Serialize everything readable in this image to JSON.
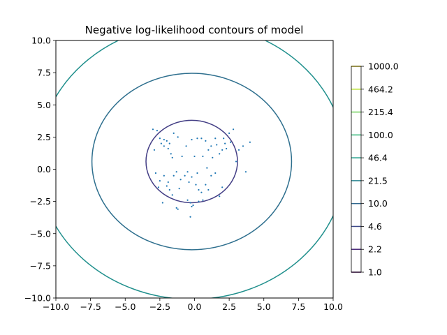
{
  "chart_data": {
    "type": "contour",
    "title": "Negative log-likelihood contours of model",
    "xlim": [
      -10,
      10
    ],
    "ylim": [
      -10,
      10
    ],
    "xticks": [
      -10,
      -7.5,
      -5,
      -2.5,
      0,
      2.5,
      5,
      7.5,
      10
    ],
    "xtick_labels": [
      "−10.0",
      "−7.5",
      "−5.0",
      "−2.5",
      "0.0",
      "2.5",
      "5.0",
      "7.5",
      "10.0"
    ],
    "yticks": [
      -10,
      -7.5,
      -5,
      -2.5,
      0,
      2.5,
      5,
      7.5,
      10
    ],
    "ytick_labels": [
      "−10.0",
      "−7.5",
      "−5.0",
      "−2.5",
      "0.0",
      "2.5",
      "5.0",
      "7.5",
      "10.0"
    ],
    "grid": false,
    "contour_center": [
      -0.2,
      0.6
    ],
    "contours": [
      {
        "level": 4.6,
        "rx": 3.3,
        "ry": 3.2,
        "color": "#433e85"
      },
      {
        "level": 10.0,
        "rx": 7.2,
        "ry": 6.85,
        "color": "#2e6f8e"
      },
      {
        "level": 21.5,
        "rx": 11.1,
        "ry": 10.7,
        "color": "#21908d"
      }
    ],
    "colorbar": {
      "levels": [
        1.0,
        2.2,
        4.6,
        10.0,
        21.5,
        46.4,
        100.0,
        215.4,
        464.2,
        1000.0
      ],
      "labels": [
        "1.0",
        "2.2",
        "4.6",
        "10.0",
        "21.5",
        "46.4",
        "100.0",
        "215.4",
        "464.2",
        "1000.0"
      ],
      "colors": [
        "#440154",
        "#482878",
        "#3e4989",
        "#31688e",
        "#26828e",
        "#1f9e89",
        "#35b779",
        "#6ece58",
        "#b5de2b",
        "#fde725"
      ]
    },
    "scatter_color": "#1f77b4",
    "points": [
      [
        -3.0,
        3.1
      ],
      [
        -2.7,
        3.0
      ],
      [
        -2.5,
        2.4
      ],
      [
        -2.2,
        2.3
      ],
      [
        -2.0,
        2.2
      ],
      [
        -1.8,
        2.0
      ],
      [
        -1.5,
        2.8
      ],
      [
        -1.2,
        2.5
      ],
      [
        -0.6,
        1.8
      ],
      [
        -0.2,
        2.3
      ],
      [
        0.2,
        2.4
      ],
      [
        0.5,
        2.4
      ],
      [
        0.8,
        2.2
      ],
      [
        1.0,
        1.5
      ],
      [
        1.2,
        1.8
      ],
      [
        1.5,
        2.4
      ],
      [
        1.8,
        1.2
      ],
      [
        2.0,
        1.5
      ],
      [
        2.2,
        2.0
      ],
      [
        2.5,
        2.8
      ],
      [
        2.8,
        3.1
      ],
      [
        3.2,
        1.5
      ],
      [
        3.5,
        1.8
      ],
      [
        4.0,
        2.1
      ],
      [
        3.0,
        0.6
      ],
      [
        3.7,
        -0.2
      ],
      [
        -2.9,
        1.5
      ],
      [
        -2.4,
        2.0
      ],
      [
        -2.2,
        1.8
      ],
      [
        -1.9,
        1.6
      ],
      [
        -1.7,
        1.2
      ],
      [
        -1.6,
        0.9
      ],
      [
        -0.9,
        1.0
      ],
      [
        0.0,
        1.0
      ],
      [
        0.6,
        1.0
      ],
      [
        1.3,
        0.9
      ],
      [
        1.6,
        1.9
      ],
      [
        2.3,
        1.6
      ],
      [
        2.6,
        2.1
      ],
      [
        2.1,
        2.4
      ],
      [
        -2.8,
        -0.3
      ],
      [
        -2.5,
        -0.9
      ],
      [
        -2.2,
        -0.5
      ],
      [
        -2.0,
        -1.3
      ],
      [
        -1.8,
        -1.6
      ],
      [
        -1.5,
        -0.5
      ],
      [
        -1.3,
        -0.2
      ],
      [
        -1.0,
        -0.8
      ],
      [
        -0.7,
        -0.5
      ],
      [
        -0.4,
        -1.0
      ],
      [
        -0.2,
        -0.6
      ],
      [
        0.1,
        -1.2
      ],
      [
        0.3,
        -1.6
      ],
      [
        0.5,
        -1.8
      ],
      [
        0.8,
        -1.2
      ],
      [
        1.2,
        -0.5
      ],
      [
        1.5,
        -0.3
      ],
      [
        2.0,
        -1.4
      ],
      [
        -2.3,
        -2.6
      ],
      [
        -1.6,
        -2.0
      ],
      [
        -0.5,
        -2.4
      ],
      [
        0.3,
        -2.5
      ],
      [
        0.6,
        -2.4
      ],
      [
        1.8,
        -2.1
      ],
      [
        -0.1,
        -2.8
      ],
      [
        -0.2,
        -2.9
      ],
      [
        -0.3,
        -2.6
      ],
      [
        -1.3,
        -3.0
      ],
      [
        -1.2,
        -3.1
      ],
      [
        -0.3,
        -3.7
      ],
      [
        -0.5,
        -0.2
      ],
      [
        0.9,
        0.1
      ],
      [
        -2.6,
        -1.4
      ],
      [
        -1.9,
        -1.0
      ],
      [
        -1.1,
        -1.5
      ],
      [
        0.2,
        -0.3
      ],
      [
        1.0,
        -1.6
      ]
    ]
  }
}
